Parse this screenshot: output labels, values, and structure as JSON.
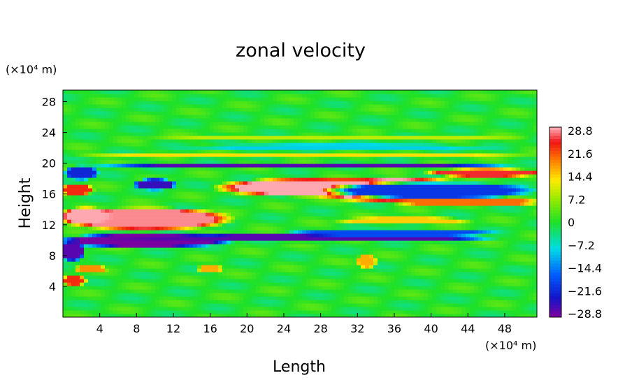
{
  "chart_data": {
    "type": "heatmap",
    "title": "zonal velocity",
    "xlabel": "Length",
    "ylabel": "Height",
    "x_unit": "(×10⁴ m)",
    "y_unit": "(×10⁴ m)",
    "xlim": [
      0,
      51.5
    ],
    "ylim": [
      0,
      29.5
    ],
    "x_ticks": [
      "4",
      "8",
      "12",
      "16",
      "20",
      "24",
      "28",
      "32",
      "36",
      "40",
      "44",
      "48"
    ],
    "y_ticks": [
      "4",
      "8",
      "12",
      "16",
      "20",
      "24",
      "28"
    ],
    "colorbar": {
      "labels": [
        "28.8",
        "21.6",
        "14.4",
        "7.2",
        "0",
        "−7.2",
        "−14.4",
        "−21.6",
        "−28.8"
      ],
      "min": -32.4,
      "max": 32.4
    },
    "regions": [
      {
        "name": "upper-jet",
        "shape": "ellipse",
        "cx": 36,
        "cy": 16.6,
        "rx": 10,
        "ry": 1.8,
        "value": 32
      },
      {
        "name": "upper-jet-core",
        "shape": "ellipse",
        "cx": 27,
        "cy": 16.9,
        "rx": 11,
        "ry": 1.3,
        "value": 32
      },
      {
        "name": "mid-jet",
        "shape": "ellipse",
        "cx": 9,
        "cy": 12.8,
        "rx": 10,
        "ry": 1.6,
        "value": 31
      },
      {
        "name": "mid-jet-west",
        "shape": "ellipse",
        "cx": 2.5,
        "cy": 13.2,
        "rx": 3,
        "ry": 1.2,
        "value": 32
      },
      {
        "name": "upper-east-jet",
        "shape": "ellipse",
        "cx": 46,
        "cy": 18.8,
        "rx": 7,
        "ry": 0.6,
        "value": 28
      },
      {
        "name": "east-jet-tail",
        "shape": "ellipse",
        "cx": 44,
        "cy": 15,
        "rx": 9,
        "ry": 0.6,
        "value": 22
      },
      {
        "name": "west-jet-17",
        "shape": "ellipse",
        "cx": 1.5,
        "cy": 16.6,
        "rx": 2,
        "ry": 0.8,
        "value": 26
      },
      {
        "name": "lower-trough",
        "shape": "ellipse",
        "cx": 9,
        "cy": 10.0,
        "rx": 10,
        "ry": 1.0,
        "value": -32
      },
      {
        "name": "lower-trough-east",
        "shape": "ellipse",
        "cx": 26,
        "cy": 10.3,
        "rx": 22,
        "ry": 0.55,
        "value": -30
      },
      {
        "name": "lower-trough-west",
        "shape": "ellipse",
        "cx": 1,
        "cy": 8.6,
        "rx": 1.5,
        "ry": 1.4,
        "value": -30
      },
      {
        "name": "trough-20",
        "shape": "ellipse",
        "cx": 26,
        "cy": 19.6,
        "rx": 27,
        "ry": 0.3,
        "value": -30
      },
      {
        "name": "upper-blue",
        "shape": "ellipse",
        "cx": 40,
        "cy": 16.5,
        "rx": 12,
        "ry": 1.2,
        "value": -22
      },
      {
        "name": "blue-patch-17",
        "shape": "ellipse",
        "cx": 10,
        "cy": 17.3,
        "rx": 2.5,
        "ry": 0.8,
        "value": -28
      },
      {
        "name": "blue-patch-19",
        "shape": "ellipse",
        "cx": 2,
        "cy": 18.8,
        "rx": 2,
        "ry": 1.0,
        "value": -24
      },
      {
        "name": "blue-band-11",
        "shape": "ellipse",
        "cx": 36,
        "cy": 11.0,
        "rx": 12,
        "ry": 0.6,
        "value": -20
      },
      {
        "name": "band-21",
        "shape": "ellipse",
        "cx": 26,
        "cy": 21.0,
        "rx": 27,
        "ry": 0.35,
        "value": 15
      },
      {
        "name": "band-22",
        "shape": "ellipse",
        "cx": 30,
        "cy": 22.2,
        "rx": 22,
        "ry": 0.35,
        "value": -10
      },
      {
        "name": "band-23",
        "shape": "ellipse",
        "cx": 30,
        "cy": 23.3,
        "rx": 22,
        "ry": 0.3,
        "value": 10
      },
      {
        "name": "red-patch-4",
        "shape": "ellipse",
        "cx": 1.2,
        "cy": 4.8,
        "rx": 1.5,
        "ry": 0.7,
        "value": 26
      },
      {
        "name": "red-patch-6",
        "shape": "ellipse",
        "cx": 3,
        "cy": 6.3,
        "rx": 2,
        "ry": 0.5,
        "value": 20
      },
      {
        "name": "red-patch-32",
        "shape": "ellipse",
        "cx": 33,
        "cy": 7.3,
        "rx": 1.2,
        "ry": 1.0,
        "value": 18
      },
      {
        "name": "red-patch-16",
        "shape": "ellipse",
        "cx": 16,
        "cy": 6.3,
        "rx": 1.5,
        "ry": 0.6,
        "value": 18
      },
      {
        "name": "orange-band-12",
        "shape": "ellipse",
        "cx": 37,
        "cy": 12.6,
        "rx": 8,
        "ry": 0.5,
        "value": 16
      }
    ]
  }
}
